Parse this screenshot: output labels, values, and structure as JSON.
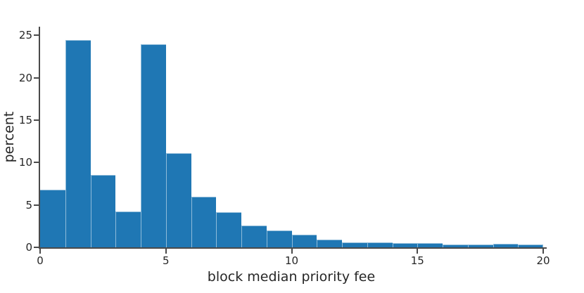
{
  "chart_data": {
    "type": "bar",
    "subtype": "histogram",
    "title": "",
    "xlabel": "block median priority fee",
    "ylabel": "percent",
    "bin_edges": [
      0,
      1,
      2,
      3,
      4,
      5,
      6,
      7,
      8,
      9,
      10,
      11,
      12,
      13,
      14,
      15,
      16,
      17,
      18,
      19,
      20
    ],
    "values": [
      6.8,
      24.4,
      8.5,
      4.2,
      23.9,
      11.1,
      6.0,
      4.1,
      2.6,
      2.0,
      1.5,
      0.9,
      0.6,
      0.6,
      0.5,
      0.5,
      0.3,
      0.3,
      0.4,
      0.35
    ],
    "xlim": [
      0,
      20
    ],
    "ylim": [
      0,
      26
    ],
    "xticks": [
      0,
      5,
      10,
      15,
      20
    ],
    "yticks": [
      0,
      5,
      10,
      15,
      20,
      25
    ],
    "grid": false,
    "legend": null,
    "colors": {
      "bar_fill": "#1f77b4",
      "bar_edge": "#8fbbd9",
      "axis": "#4a4a4a",
      "text": "#262626",
      "background": "#ffffff"
    }
  }
}
